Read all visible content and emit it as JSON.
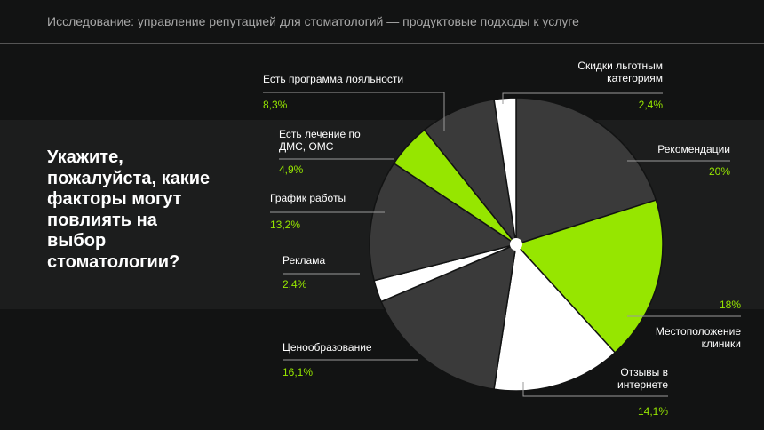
{
  "header": {
    "title": "Исследование: управление репутацией для стоматологий — продуктовые подходы к услуге"
  },
  "question": "Укажите, пожалуйста, какие факторы могут повлиять на выбор стоматологии?",
  "colors": {
    "background": "#121313",
    "band": "#1c1d1d",
    "dark": "#3a3a3a",
    "green": "#96e600",
    "white": "#ffffff"
  },
  "chart_data": {
    "type": "pie",
    "slices": [
      {
        "label": "Рекомендации",
        "value": 20,
        "display": "20%",
        "color": "#3a3a3a"
      },
      {
        "label": "Местоположение клиники",
        "value": 18,
        "display": "18%",
        "color": "#96e600"
      },
      {
        "label": "Отзывы в интернете",
        "value": 14.1,
        "display": "14,1%",
        "color": "#ffffff"
      },
      {
        "label": "Ценообразование",
        "value": 16.1,
        "display": "16,1%",
        "color": "#3a3a3a"
      },
      {
        "label": "Реклама",
        "value": 2.4,
        "display": "2,4%",
        "color": "#ffffff"
      },
      {
        "label": "График работы",
        "value": 13.2,
        "display": "13,2%",
        "color": "#3a3a3a"
      },
      {
        "label": "Есть лечение по ДМС, ОМС",
        "value": 4.9,
        "display": "4,9%",
        "color": "#96e600"
      },
      {
        "label": "Есть программа лояльности",
        "value": 8.3,
        "display": "8,3%",
        "color": "#3a3a3a"
      },
      {
        "label": "Скидки льготным категориям",
        "value": 2.4,
        "display": "2,4%",
        "color": "#ffffff"
      }
    ]
  }
}
